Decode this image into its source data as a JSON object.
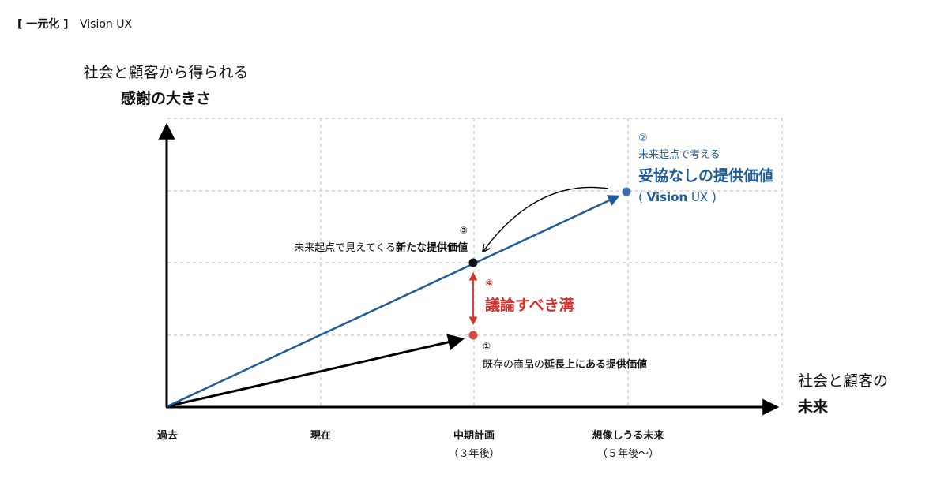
{
  "header": {
    "tag": "[ 一元化 ]",
    "title": "Vision UX"
  },
  "y_axis": {
    "line1": "社会と顧客から得られる",
    "line2": "感謝の大きさ"
  },
  "x_axis": {
    "line1": "社会と顧客の",
    "line2": "未来"
  },
  "ticks": [
    {
      "label": "過去",
      "sub": ""
    },
    {
      "label": "現在",
      "sub": ""
    },
    {
      "label": "中期計画",
      "sub": "（３年後）"
    },
    {
      "label": "想像しうる未来",
      "sub": "（５年後〜）"
    }
  ],
  "point2": {
    "num": "②",
    "sub": "未来起点で考える",
    "head": "妥協なしの提供価値",
    "tail_open": "( ",
    "tail_bold": "Vision",
    "tail_rest": " UX )"
  },
  "point3": {
    "num": "③",
    "plain": "未来起点で見えてくる",
    "bold": "新たな提供価値"
  },
  "point4": {
    "num": "④",
    "head": "議論すべき溝"
  },
  "point1": {
    "num": "①",
    "plain": "既存の商品の",
    "bold": "延長上にある提供価値"
  },
  "colors": {
    "vision_line": "#1f5a99",
    "vision_point": "#3a6fab",
    "gap": "#d2322d",
    "gap_point": "#cf4a44",
    "axis": "#000000",
    "grid": "#bbbbbb"
  }
}
